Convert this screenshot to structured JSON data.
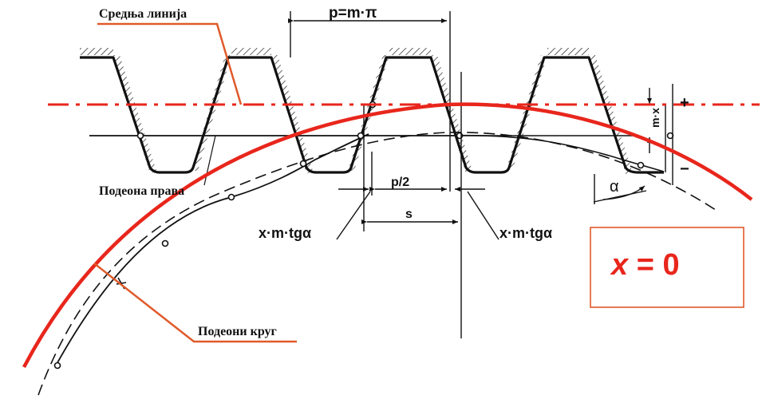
{
  "labels": {
    "middle_line": "Средња линија",
    "pitch_formula": "p=m·π",
    "half_pitch": "p/2",
    "tooth_thickness": "s",
    "offset_left": "x·m·tgα",
    "offset_right": "x·m·tgα",
    "pitch_line": "Подеона права",
    "pitch_circle": "Подеони круг",
    "profile_shift": "m·x",
    "pressure_angle": "α",
    "plus_sign": "+",
    "minus_sign": "−"
  },
  "highlight": {
    "variable": "x",
    "equals": " = 0"
  },
  "colors": {
    "accent": "#e8261c",
    "leader": "#e05a2a",
    "ink": "#111111"
  }
}
